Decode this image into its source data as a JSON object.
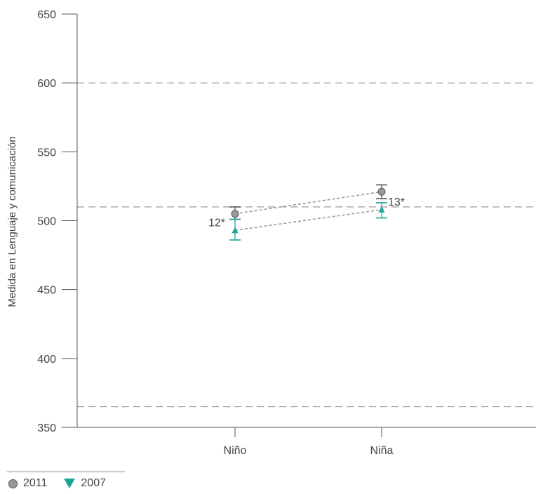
{
  "chart_data": {
    "type": "scatter",
    "title": "",
    "xlabel": "",
    "ylabel": "Medida en Lenguaje y comunicación",
    "ylim": [
      350,
      650
    ],
    "yticks": [
      350,
      400,
      450,
      500,
      550,
      600,
      650
    ],
    "categories": [
      "Niño",
      "Niña"
    ],
    "reference_lines": [
      365,
      510,
      600
    ],
    "grid": false,
    "legend_position": "bottom-left",
    "series": [
      {
        "name": "2011",
        "marker": "circle",
        "color": "#9a9a9a",
        "values": [
          505,
          521
        ],
        "ci_low": [
          501,
          516
        ],
        "ci_high": [
          510,
          526
        ]
      },
      {
        "name": "2007",
        "marker": "triangle-down",
        "color": "#1aa597",
        "values": [
          493,
          508
        ],
        "ci_low": [
          486,
          502
        ],
        "ci_high": [
          501,
          513
        ]
      }
    ],
    "annotations": [
      {
        "category": "Niño",
        "text": "12*"
      },
      {
        "category": "Niña",
        "text": "13*"
      }
    ]
  },
  "legend": {
    "items": [
      {
        "label": "2011",
        "icon": "gray-circle-icon"
      },
      {
        "label": "2007",
        "icon": "teal-triangle-down-icon"
      }
    ]
  }
}
